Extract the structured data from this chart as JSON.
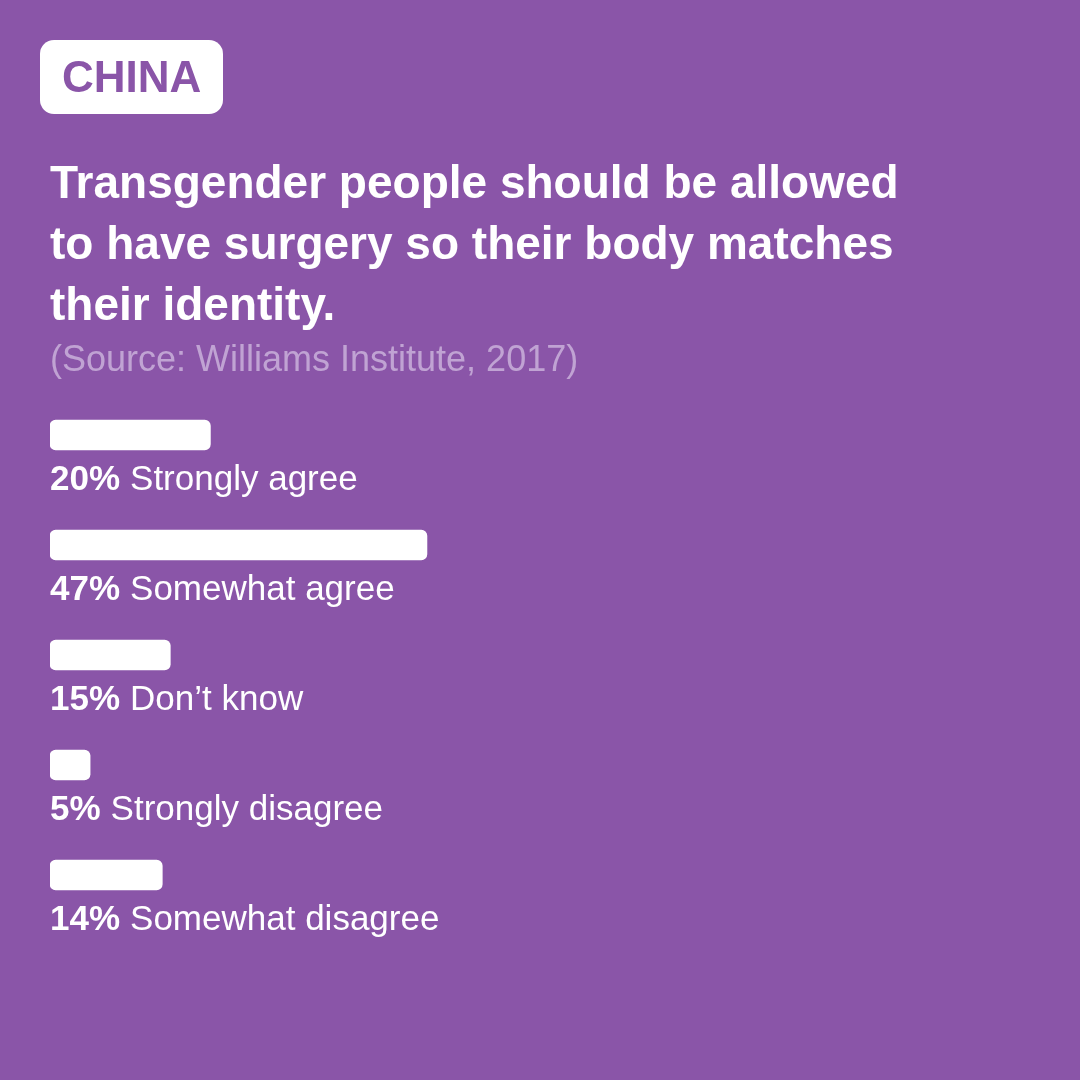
{
  "chart_data": {
    "type": "bar",
    "orientation": "horizontal",
    "title": "Transgender people should be allowed to have surgery so their body matches their identity.",
    "annotations": [
      "CHINA",
      "(Source: Williams Institute, 2017)"
    ],
    "categories": [
      "Strongly agree",
      "Somewhat agree",
      "Don’t know",
      "Strongly disagree",
      "Somewhat disagree"
    ],
    "values": [
      20,
      47,
      15,
      5,
      14
    ],
    "value_labels": [
      "20%",
      "47%",
      "15%",
      "5%",
      "14%"
    ],
    "color": "#ffffff"
  }
}
